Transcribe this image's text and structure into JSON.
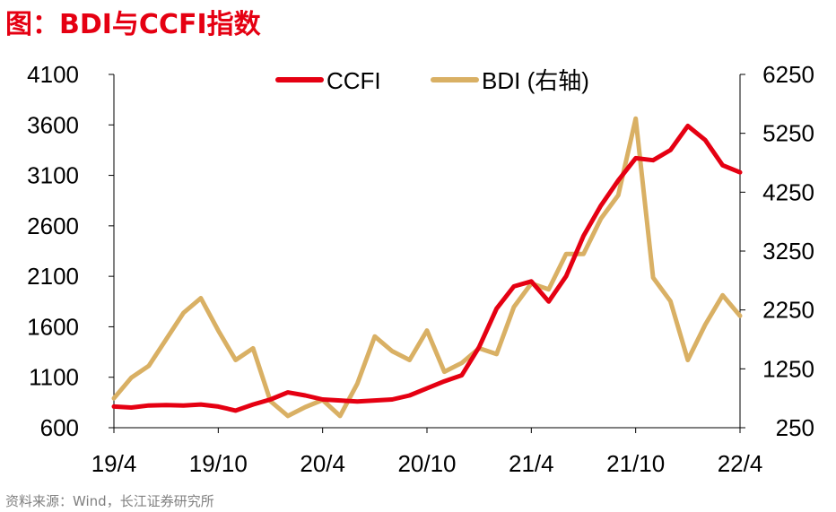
{
  "title": "图：BDI与CCFI指数",
  "source": "资料来源：Wind，长江证券研究所",
  "chart_data": {
    "type": "line",
    "title": "图：BDI与CCFI指数",
    "x_tick_labels": [
      "19/4",
      "19/10",
      "20/4",
      "20/10",
      "21/4",
      "21/10",
      "22/4"
    ],
    "x_range": [
      "2019-04",
      "2022-04"
    ],
    "y_left": {
      "label": "",
      "ticks": [
        600,
        1100,
        1600,
        2100,
        2600,
        3100,
        3600,
        4100
      ],
      "ylim": [
        600,
        4100
      ]
    },
    "y_right": {
      "label": "",
      "ticks": [
        250,
        1250,
        2250,
        3250,
        4250,
        5250,
        6250
      ],
      "ylim": [
        250,
        6250
      ]
    },
    "grid": false,
    "legend": "top-center",
    "colors": {
      "CCFI": "#e50012",
      "BDI": "#d9b064"
    },
    "series": [
      {
        "name": "CCFI",
        "axis": "left",
        "color": "#e50012",
        "points": [
          [
            "2019-04",
            810
          ],
          [
            "2019-05",
            800
          ],
          [
            "2019-06",
            820
          ],
          [
            "2019-07",
            825
          ],
          [
            "2019-08",
            820
          ],
          [
            "2019-09",
            830
          ],
          [
            "2019-10",
            810
          ],
          [
            "2019-11",
            770
          ],
          [
            "2019-12",
            830
          ],
          [
            "2020-01",
            880
          ],
          [
            "2020-02",
            950
          ],
          [
            "2020-03",
            920
          ],
          [
            "2020-04",
            880
          ],
          [
            "2020-05",
            870
          ],
          [
            "2020-06",
            860
          ],
          [
            "2020-07",
            870
          ],
          [
            "2020-08",
            880
          ],
          [
            "2020-09",
            920
          ],
          [
            "2020-10",
            990
          ],
          [
            "2020-11",
            1060
          ],
          [
            "2020-12",
            1120
          ],
          [
            "2021-01",
            1400
          ],
          [
            "2021-02",
            1780
          ],
          [
            "2021-03",
            2000
          ],
          [
            "2021-04",
            2050
          ],
          [
            "2021-05",
            1850
          ],
          [
            "2021-06",
            2100
          ],
          [
            "2021-07",
            2500
          ],
          [
            "2021-08",
            2800
          ],
          [
            "2021-09",
            3050
          ],
          [
            "2021-10",
            3270
          ],
          [
            "2021-11",
            3250
          ],
          [
            "2021-12",
            3350
          ],
          [
            "2022-01",
            3590
          ],
          [
            "2022-02",
            3450
          ],
          [
            "2022-03",
            3200
          ],
          [
            "2022-04",
            3130
          ]
        ]
      },
      {
        "name": "BDI (右轴)",
        "axis": "right",
        "color": "#d9b064",
        "points": [
          [
            "2019-04",
            750
          ],
          [
            "2019-05",
            1100
          ],
          [
            "2019-06",
            1300
          ],
          [
            "2019-07",
            1750
          ],
          [
            "2019-08",
            2200
          ],
          [
            "2019-09",
            2450
          ],
          [
            "2019-10",
            1900
          ],
          [
            "2019-11",
            1400
          ],
          [
            "2019-12",
            1600
          ],
          [
            "2020-01",
            700
          ],
          [
            "2020-02",
            450
          ],
          [
            "2020-03",
            600
          ],
          [
            "2020-04",
            720
          ],
          [
            "2020-05",
            450
          ],
          [
            "2020-06",
            1000
          ],
          [
            "2020-07",
            1800
          ],
          [
            "2020-08",
            1550
          ],
          [
            "2020-09",
            1400
          ],
          [
            "2020-10",
            1900
          ],
          [
            "2020-11",
            1200
          ],
          [
            "2020-12",
            1350
          ],
          [
            "2021-01",
            1600
          ],
          [
            "2021-02",
            1500
          ],
          [
            "2021-03",
            2300
          ],
          [
            "2021-04",
            2700
          ],
          [
            "2021-05",
            2600
          ],
          [
            "2021-06",
            3200
          ],
          [
            "2021-07",
            3200
          ],
          [
            "2021-08",
            3800
          ],
          [
            "2021-09",
            4200
          ],
          [
            "2021-10",
            5500
          ],
          [
            "2021-11",
            2800
          ],
          [
            "2021-12",
            2400
          ],
          [
            "2022-01",
            1400
          ],
          [
            "2022-02",
            2000
          ],
          [
            "2022-03",
            2500
          ],
          [
            "2022-04",
            2150
          ]
        ]
      }
    ]
  }
}
